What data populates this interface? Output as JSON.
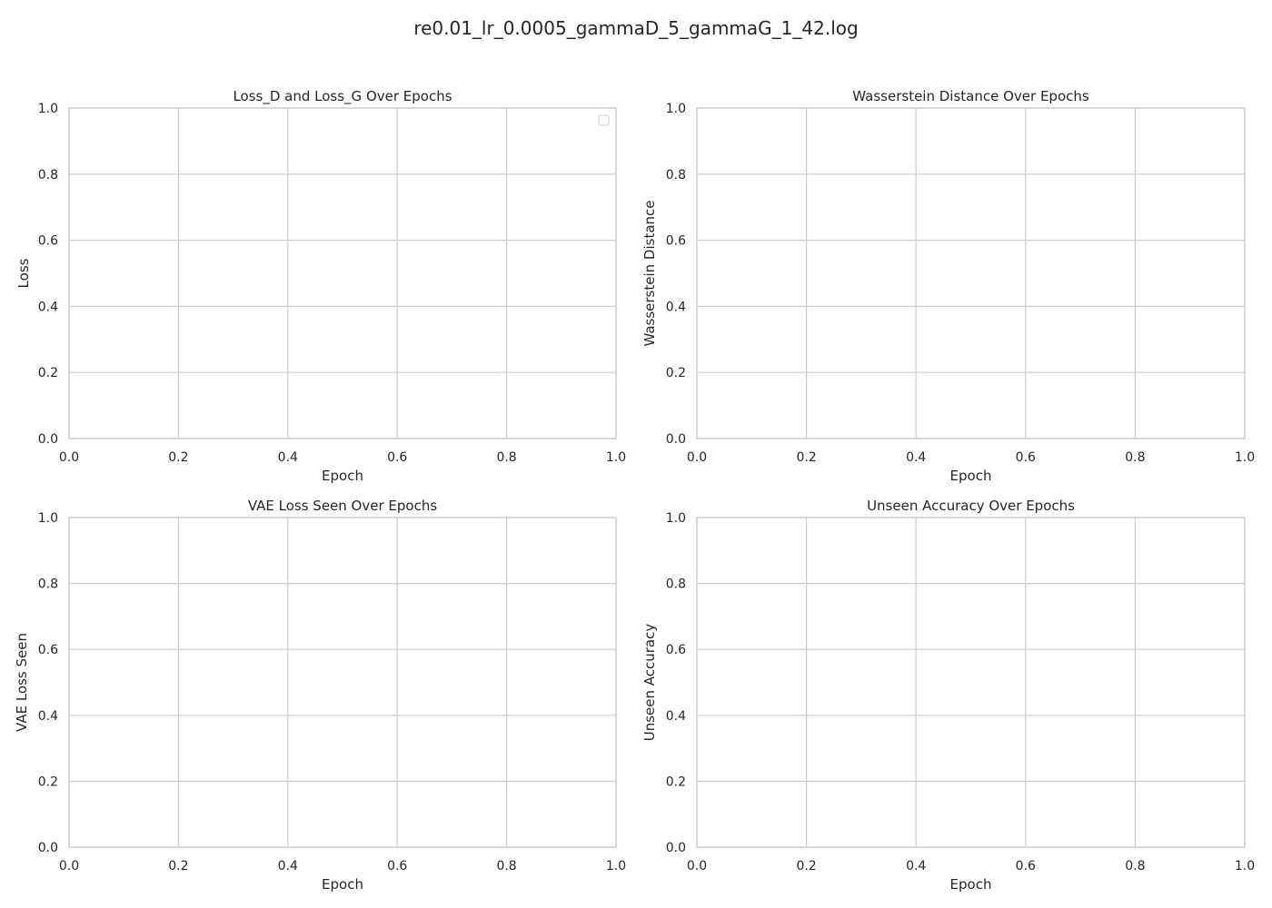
{
  "figure": {
    "suptitle": "re0.01_lr_0.0005_gammaD_5_gammaG_1_42.log"
  },
  "chart_data": [
    {
      "type": "line",
      "title": "Loss_D and Loss_G Over Epochs",
      "xlabel": "Epoch",
      "ylabel": "Loss",
      "xlim": [
        0,
        1
      ],
      "ylim": [
        0,
        1
      ],
      "xticks": [
        "0.0",
        "0.2",
        "0.4",
        "0.6",
        "0.8",
        "1.0"
      ],
      "yticks": [
        "0.0",
        "0.2",
        "0.4",
        "0.6",
        "0.8",
        "1.0"
      ],
      "grid": true,
      "legend": "top-right",
      "series": []
    },
    {
      "type": "line",
      "title": "Wasserstein Distance Over Epochs",
      "xlabel": "Epoch",
      "ylabel": "Wasserstein Distance",
      "xlim": [
        0,
        1
      ],
      "ylim": [
        0,
        1
      ],
      "xticks": [
        "0.0",
        "0.2",
        "0.4",
        "0.6",
        "0.8",
        "1.0"
      ],
      "yticks": [
        "0.0",
        "0.2",
        "0.4",
        "0.6",
        "0.8",
        "1.0"
      ],
      "grid": true,
      "legend": "none",
      "series": []
    },
    {
      "type": "line",
      "title": "VAE Loss Seen Over Epochs",
      "xlabel": "Epoch",
      "ylabel": "VAE Loss Seen",
      "xlim": [
        0,
        1
      ],
      "ylim": [
        0,
        1
      ],
      "xticks": [
        "0.0",
        "0.2",
        "0.4",
        "0.6",
        "0.8",
        "1.0"
      ],
      "yticks": [
        "0.0",
        "0.2",
        "0.4",
        "0.6",
        "0.8",
        "1.0"
      ],
      "grid": true,
      "legend": "none",
      "series": []
    },
    {
      "type": "line",
      "title": "Unseen Accuracy Over Epochs",
      "xlabel": "Epoch",
      "ylabel": "Unseen Accuracy",
      "xlim": [
        0,
        1
      ],
      "ylim": [
        0,
        1
      ],
      "xticks": [
        "0.0",
        "0.2",
        "0.4",
        "0.6",
        "0.8",
        "1.0"
      ],
      "yticks": [
        "0.0",
        "0.2",
        "0.4",
        "0.6",
        "0.8",
        "1.0"
      ],
      "grid": true,
      "legend": "none",
      "series": []
    }
  ],
  "colors": {
    "grid": "#cccccc",
    "text": "#262626",
    "background": "#ffffff"
  }
}
